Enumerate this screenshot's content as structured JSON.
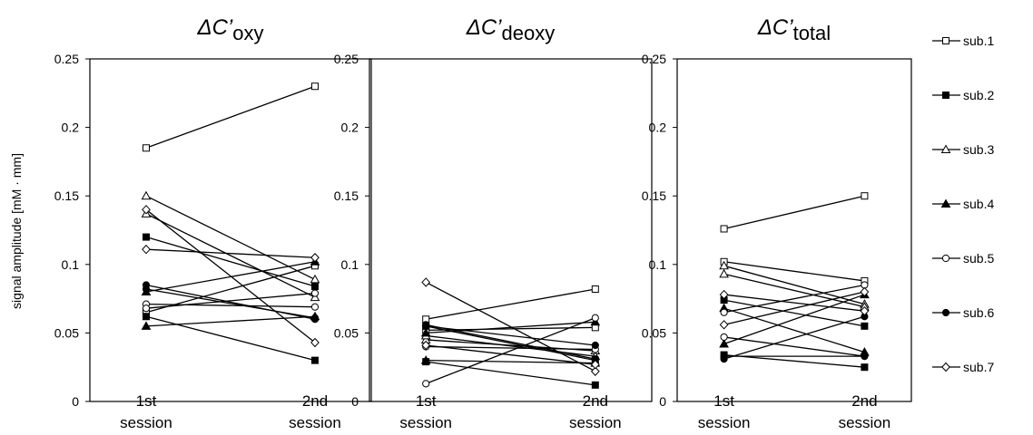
{
  "ylabel": "signal amplitude [mM · mm]",
  "y_ticks": [
    "0",
    "0.05",
    "0.1",
    "0.15",
    "0.2",
    "0.25"
  ],
  "x_categories": [
    {
      "line1": "1st",
      "line2": "session"
    },
    {
      "line1": "2nd",
      "line2": "session"
    }
  ],
  "legend": [
    {
      "name": "sub.1",
      "marker": "square-open"
    },
    {
      "name": "sub.2",
      "marker": "square-filled"
    },
    {
      "name": "sub.3",
      "marker": "triangle-open"
    },
    {
      "name": "sub.4",
      "marker": "triangle-filled"
    },
    {
      "name": "sub.5",
      "marker": "circle-open"
    },
    {
      "name": "sub.6",
      "marker": "circle-filled"
    },
    {
      "name": "sub.7",
      "marker": "diamond-open"
    }
  ],
  "chart_data": [
    {
      "type": "line",
      "title_prefix": "ΔC’",
      "title_sub": "oxy",
      "ylim": [
        0,
        0.25
      ],
      "categories": [
        "1st session",
        "2nd session"
      ],
      "lines": [
        {
          "subject": "sub.1",
          "marker": "square-open",
          "values": [
            0.185,
            0.23
          ]
        },
        {
          "subject": "sub.1",
          "marker": "square-open",
          "values": [
            0.065,
            0.099
          ]
        },
        {
          "subject": "sub.2",
          "marker": "square-filled",
          "values": [
            0.12,
            0.084
          ]
        },
        {
          "subject": "sub.2",
          "marker": "square-filled",
          "values": [
            0.062,
            0.03
          ]
        },
        {
          "subject": "sub.3",
          "marker": "triangle-open",
          "values": [
            0.15,
            0.089
          ]
        },
        {
          "subject": "sub.3",
          "marker": "triangle-open",
          "values": [
            0.137,
            0.076
          ]
        },
        {
          "subject": "sub.4",
          "marker": "triangle-filled",
          "values": [
            0.08,
            0.102
          ]
        },
        {
          "subject": "sub.4",
          "marker": "triangle-filled",
          "values": [
            0.055,
            0.062
          ]
        },
        {
          "subject": "sub.5",
          "marker": "circle-open",
          "values": [
            0.071,
            0.069
          ]
        },
        {
          "subject": "sub.5",
          "marker": "circle-open",
          "values": [
            0.068,
            0.079
          ]
        },
        {
          "subject": "sub.6",
          "marker": "circle-filled",
          "values": [
            0.085,
            0.06
          ]
        },
        {
          "subject": "sub.6",
          "marker": "circle-filled",
          "values": [
            0.082,
            0.061
          ]
        },
        {
          "subject": "sub.7",
          "marker": "diamond-open",
          "values": [
            0.14,
            0.043
          ]
        },
        {
          "subject": "sub.7",
          "marker": "diamond-open",
          "values": [
            0.111,
            0.105
          ]
        }
      ]
    },
    {
      "type": "line",
      "title_prefix": "ΔC’",
      "title_sub": "deoxy",
      "ylim": [
        0,
        0.25
      ],
      "categories": [
        "1st session",
        "2nd session"
      ],
      "lines": [
        {
          "subject": "sub.1",
          "marker": "square-open",
          "values": [
            0.06,
            0.082
          ]
        },
        {
          "subject": "sub.1",
          "marker": "square-open",
          "values": [
            0.052,
            0.054
          ]
        },
        {
          "subject": "sub.2",
          "marker": "square-filled",
          "values": [
            0.029,
            0.012
          ]
        },
        {
          "subject": "sub.2",
          "marker": "square-filled",
          "values": [
            0.055,
            0.03
          ]
        },
        {
          "subject": "sub.3",
          "marker": "triangle-open",
          "values": [
            0.045,
            0.037
          ]
        },
        {
          "subject": "sub.3",
          "marker": "triangle-open",
          "values": [
            0.048,
            0.033
          ]
        },
        {
          "subject": "sub.4",
          "marker": "triangle-filled",
          "values": [
            0.05,
            0.058
          ]
        },
        {
          "subject": "sub.4",
          "marker": "triangle-filled",
          "values": [
            0.03,
            0.028
          ]
        },
        {
          "subject": "sub.5",
          "marker": "circle-open",
          "values": [
            0.013,
            0.061
          ]
        },
        {
          "subject": "sub.5",
          "marker": "circle-open",
          "values": [
            0.04,
            0.038
          ]
        },
        {
          "subject": "sub.6",
          "marker": "circle-filled",
          "values": [
            0.055,
            0.041
          ]
        },
        {
          "subject": "sub.6",
          "marker": "circle-filled",
          "values": [
            0.056,
            0.031
          ]
        },
        {
          "subject": "sub.7",
          "marker": "diamond-open",
          "values": [
            0.087,
            0.022
          ]
        },
        {
          "subject": "sub.7",
          "marker": "diamond-open",
          "values": [
            0.041,
            0.027
          ]
        }
      ]
    },
    {
      "type": "line",
      "title_prefix": "ΔC’",
      "title_sub": "total",
      "ylim": [
        0,
        0.25
      ],
      "categories": [
        "1st session",
        "2nd session"
      ],
      "lines": [
        {
          "subject": "sub.1",
          "marker": "square-open",
          "values": [
            0.126,
            0.15
          ]
        },
        {
          "subject": "sub.1",
          "marker": "square-open",
          "values": [
            0.102,
            0.088
          ]
        },
        {
          "subject": "sub.2",
          "marker": "square-filled",
          "values": [
            0.074,
            0.055
          ]
        },
        {
          "subject": "sub.2",
          "marker": "square-filled",
          "values": [
            0.034,
            0.025
          ]
        },
        {
          "subject": "sub.3",
          "marker": "triangle-open",
          "values": [
            0.099,
            0.071
          ]
        },
        {
          "subject": "sub.3",
          "marker": "triangle-open",
          "values": [
            0.093,
            0.069
          ]
        },
        {
          "subject": "sub.4",
          "marker": "triangle-filled",
          "values": [
            0.042,
            0.078
          ]
        },
        {
          "subject": "sub.4",
          "marker": "triangle-filled",
          "values": [
            0.068,
            0.036
          ]
        },
        {
          "subject": "sub.5",
          "marker": "circle-open",
          "values": [
            0.065,
            0.085
          ]
        },
        {
          "subject": "sub.5",
          "marker": "circle-open",
          "values": [
            0.047,
            0.033
          ]
        },
        {
          "subject": "sub.6",
          "marker": "circle-filled",
          "values": [
            0.031,
            0.062
          ]
        },
        {
          "subject": "sub.6",
          "marker": "circle-filled",
          "values": [
            0.033,
            0.033
          ]
        },
        {
          "subject": "sub.7",
          "marker": "diamond-open",
          "values": [
            0.078,
            0.066
          ]
        },
        {
          "subject": "sub.7",
          "marker": "diamond-open",
          "values": [
            0.056,
            0.08
          ]
        }
      ]
    }
  ]
}
